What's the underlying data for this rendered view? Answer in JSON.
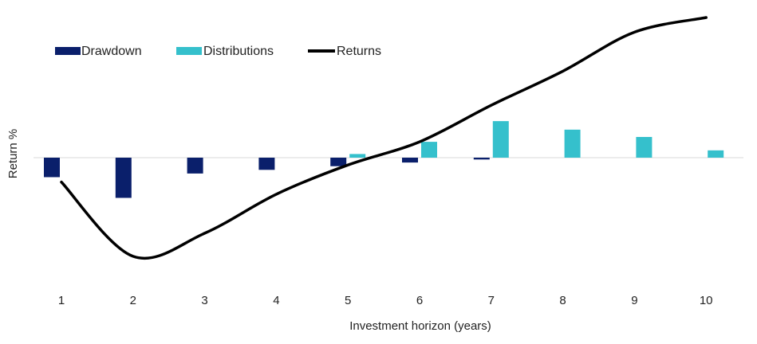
{
  "chart_data": {
    "type": "bar",
    "xlabel": "Investment horizon (years)",
    "ylabel": "Return %",
    "categories": [
      "1",
      "2",
      "3",
      "4",
      "5",
      "6",
      "7",
      "8",
      "9",
      "10"
    ],
    "ylim": [
      -10,
      11
    ],
    "grid": false,
    "legend_position": "top-left",
    "series": [
      {
        "name": "Drawdown",
        "kind": "bar",
        "color": "#0a1f6b",
        "values": [
          -1.6,
          -3.3,
          -1.3,
          -1.0,
          -0.7,
          -0.4,
          -0.15,
          0,
          0,
          0
        ]
      },
      {
        "name": "Distributions",
        "kind": "bar",
        "color": "#35c0cc",
        "values": [
          0,
          0,
          0,
          0,
          0.3,
          1.3,
          3.0,
          2.3,
          1.7,
          0.6
        ]
      },
      {
        "name": "Returns",
        "kind": "line",
        "color": "#000000",
        "values": [
          -2.0,
          -8.1,
          -6.2,
          -3.0,
          -0.6,
          1.3,
          4.3,
          7.1,
          10.3,
          11.5
        ]
      }
    ]
  }
}
